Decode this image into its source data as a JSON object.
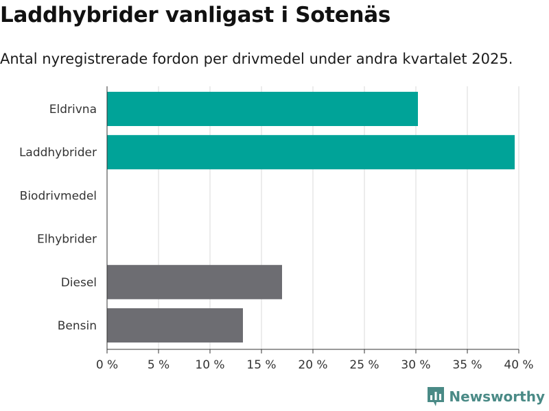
{
  "title": "Laddhybrider vanligast i Sotenäs",
  "subtitle": "Antal nyregistrerade fordon per drivmedel under andra kvartalet 2025.",
  "brand": {
    "name": "Newsworthy",
    "icon": "newsworthy-logo-icon"
  },
  "colors": {
    "electric": "#00a398",
    "fossil": "#6d6d72",
    "grid": "#d9d9d9",
    "axis": "#333333",
    "brand": "#4a8a86"
  },
  "chart_data": {
    "type": "bar",
    "orientation": "horizontal",
    "categories": [
      "Eldrivna",
      "Laddhybrider",
      "Biodrivmedel",
      "Elhybrider",
      "Diesel",
      "Bensin"
    ],
    "values": [
      30.2,
      39.6,
      0,
      0,
      17.0,
      13.2
    ],
    "bar_colors": [
      "#00a398",
      "#00a398",
      "#00a398",
      "#00a398",
      "#6d6d72",
      "#6d6d72"
    ],
    "xlim": [
      0,
      40
    ],
    "xticks": [
      0,
      5,
      10,
      15,
      20,
      25,
      30,
      35,
      40
    ],
    "xtick_labels": [
      "0 %",
      "5 %",
      "10 %",
      "15 %",
      "20 %",
      "25 %",
      "30 %",
      "35 %",
      "40 %"
    ],
    "grid": "vertical",
    "title": "Laddhybrider vanligast i Sotenäs",
    "subtitle": "Antal nyregistrerade fordon per drivmedel under andra kvartalet 2025.",
    "xlabel": "",
    "ylabel": ""
  }
}
